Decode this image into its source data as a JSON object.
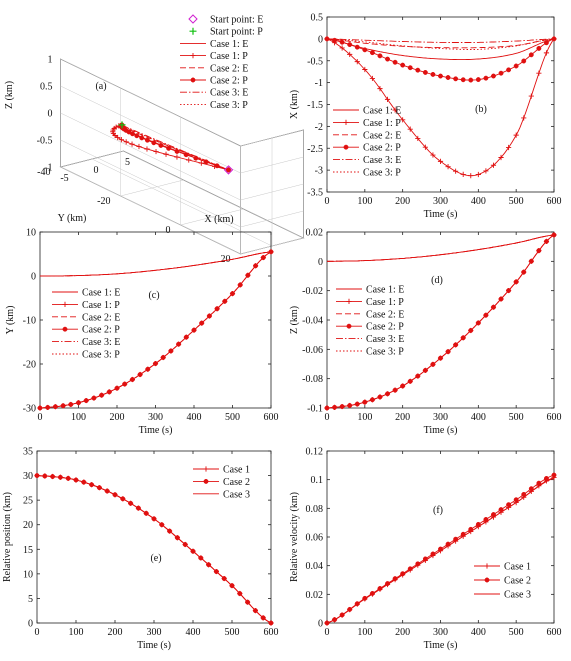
{
  "chart_data": [
    {
      "id": "a",
      "type": "line",
      "panel_label": "(a)",
      "projection": "3d",
      "xlabel": "X (km)",
      "ylabel": "Y (km)",
      "zlabel": "Z (km)",
      "xlim": [
        -5,
        5
      ],
      "ylim": [
        -40,
        20
      ],
      "zlim": [
        -1,
        1
      ],
      "x_ticks": [
        "-5",
        "0",
        "5"
      ],
      "y_ticks": [
        "-40",
        "-20",
        "0",
        "20"
      ],
      "z_ticks": [
        "-1",
        "-0.5",
        "0",
        "0.5",
        "1"
      ],
      "legend": [
        "Start point: E",
        "Start point: P",
        "Case 1: E",
        "Case 1: P",
        "Case 2: E",
        "Case 2: P",
        "Case 3: E",
        "Case 3: P"
      ],
      "start_point_E": {
        "x": 0,
        "y": 5.5,
        "z": 0.02
      },
      "start_point_P": {
        "x": 0,
        "y": -30,
        "z": -0.1
      }
    },
    {
      "id": "b",
      "type": "line",
      "panel_label": "(b)",
      "xlabel": "Time (s)",
      "ylabel": "X (km)",
      "xlim": [
        0,
        600
      ],
      "ylim": [
        -3.5,
        0.5
      ],
      "x_ticks": [
        "0",
        "100",
        "200",
        "300",
        "400",
        "500",
        "600"
      ],
      "y_ticks": [
        "-3.5",
        "-3",
        "-2.5",
        "-2",
        "-1.5",
        "-1",
        "-0.5",
        "0",
        "0.5"
      ],
      "legend_position": "bottom-left",
      "x": [
        0,
        100,
        200,
        300,
        400,
        500,
        600
      ],
      "series": [
        {
          "name": "Case 1: E",
          "style": "solid",
          "values": [
            0,
            -0.22,
            -0.38,
            -0.46,
            -0.46,
            -0.33,
            0
          ]
        },
        {
          "name": "Case 1: P",
          "style": "plus",
          "values": [
            0,
            -0.7,
            -1.85,
            -2.8,
            -3.1,
            -2.2,
            0
          ]
        },
        {
          "name": "Case 2: E",
          "style": "dashed",
          "values": [
            0,
            -0.1,
            -0.17,
            -0.2,
            -0.2,
            -0.15,
            0
          ]
        },
        {
          "name": "Case 2: P",
          "style": "dot-marker",
          "values": [
            0,
            -0.25,
            -0.6,
            -0.85,
            -0.93,
            -0.62,
            0
          ]
        },
        {
          "name": "Case 3: E",
          "style": "dashdot",
          "values": [
            0,
            -0.03,
            -0.06,
            -0.08,
            -0.08,
            -0.05,
            0
          ]
        },
        {
          "name": "Case 3: P",
          "style": "dotted",
          "values": [
            0,
            -0.07,
            -0.16,
            -0.22,
            -0.24,
            -0.16,
            0
          ]
        }
      ]
    },
    {
      "id": "c",
      "type": "line",
      "panel_label": "(c)",
      "xlabel": "Time (s)",
      "ylabel": "Y (km)",
      "xlim": [
        0,
        600
      ],
      "ylim": [
        -30,
        10
      ],
      "x_ticks": [
        "0",
        "100",
        "200",
        "300",
        "400",
        "500",
        "600"
      ],
      "y_ticks": [
        "-30",
        "-20",
        "-10",
        "0",
        "10"
      ],
      "legend_position": "middle-left",
      "x": [
        0,
        100,
        200,
        300,
        400,
        500,
        600
      ],
      "series": [
        {
          "name": "Case 1: E",
          "style": "solid",
          "values": [
            0,
            0.1,
            0.5,
            1.3,
            2.4,
            3.8,
            5.5
          ]
        },
        {
          "name": "Case 1: P",
          "style": "plus",
          "values": [
            -30,
            -28.8,
            -25.5,
            -19.9,
            -12.3,
            -4,
            5.5
          ]
        },
        {
          "name": "Case 2: E",
          "style": "dashed",
          "values": [
            0,
            0.1,
            0.5,
            1.3,
            2.4,
            3.8,
            5.5
          ]
        },
        {
          "name": "Case 2: P",
          "style": "dot-marker",
          "values": [
            -30,
            -28.8,
            -25.5,
            -19.9,
            -12.3,
            -4,
            5.5
          ]
        },
        {
          "name": "Case 3: E",
          "style": "dashdot",
          "values": [
            0,
            0.1,
            0.5,
            1.3,
            2.4,
            3.8,
            5.5
          ]
        },
        {
          "name": "Case 3: P",
          "style": "dotted",
          "values": [
            -30,
            -28.8,
            -25.5,
            -19.9,
            -12.3,
            -4,
            5.5
          ]
        }
      ]
    },
    {
      "id": "d",
      "type": "line",
      "panel_label": "(d)",
      "xlabel": "Time (s)",
      "ylabel": "Z (km)",
      "xlim": [
        0,
        600
      ],
      "ylim": [
        -0.1,
        0.02
      ],
      "x_ticks": [
        "0",
        "100",
        "200",
        "300",
        "400",
        "500",
        "600"
      ],
      "y_ticks": [
        "-0.1",
        "-0.08",
        "-0.06",
        "-0.04",
        "-0.02",
        "0",
        "0.02"
      ],
      "legend_position": "middle-right",
      "x": [
        0,
        100,
        200,
        300,
        400,
        500,
        600
      ],
      "series": [
        {
          "name": "Case 1: E",
          "style": "solid",
          "values": [
            0,
            0.0005,
            0.002,
            0.0045,
            0.008,
            0.0125,
            0.018
          ]
        },
        {
          "name": "Case 1: P",
          "style": "plus",
          "values": [
            -0.1,
            -0.096,
            -0.085,
            -0.066,
            -0.042,
            -0.014,
            0.018
          ]
        },
        {
          "name": "Case 2: E",
          "style": "dashed",
          "values": [
            0,
            0.0005,
            0.002,
            0.0045,
            0.008,
            0.0125,
            0.018
          ]
        },
        {
          "name": "Case 2: P",
          "style": "dot-marker",
          "values": [
            -0.1,
            -0.096,
            -0.085,
            -0.066,
            -0.042,
            -0.014,
            0.018
          ]
        },
        {
          "name": "Case 3: E",
          "style": "dashdot",
          "values": [
            0,
            0.0005,
            0.002,
            0.0045,
            0.008,
            0.0125,
            0.018
          ]
        },
        {
          "name": "Case 3: P",
          "style": "dotted",
          "values": [
            -0.1,
            -0.096,
            -0.085,
            -0.066,
            -0.042,
            -0.014,
            0.018
          ]
        }
      ]
    },
    {
      "id": "e",
      "type": "line",
      "panel_label": "(e)",
      "xlabel": "Time (s)",
      "ylabel": "Relative position (km)",
      "xlim": [
        0,
        600
      ],
      "ylim": [
        0,
        35
      ],
      "x_ticks": [
        "0",
        "100",
        "200",
        "300",
        "400",
        "500",
        "600"
      ],
      "y_ticks": [
        "0",
        "5",
        "10",
        "15",
        "20",
        "25",
        "30",
        "35"
      ],
      "legend_position": "top-right",
      "x": [
        0,
        100,
        200,
        300,
        400,
        500,
        600
      ],
      "series": [
        {
          "name": "Case 1",
          "style": "plus",
          "values": [
            30,
            29.1,
            26.1,
            21.2,
            14.6,
            7.6,
            0
          ]
        },
        {
          "name": "Case 2",
          "style": "dot-marker",
          "values": [
            30,
            29.1,
            26.1,
            21.2,
            14.6,
            7.6,
            0
          ]
        },
        {
          "name": "Case 3",
          "style": "solid",
          "values": [
            30,
            29.1,
            26.1,
            21.2,
            14.6,
            7.6,
            0
          ]
        }
      ]
    },
    {
      "id": "f",
      "type": "line",
      "panel_label": "(f)",
      "xlabel": "Time (s)",
      "ylabel": "Relative velocity (km)",
      "xlim": [
        0,
        600
      ],
      "ylim": [
        0,
        0.12
      ],
      "x_ticks": [
        "0",
        "100",
        "200",
        "300",
        "400",
        "500",
        "600"
      ],
      "y_ticks": [
        "0",
        "0.02",
        "0.04",
        "0.06",
        "0.08",
        "0.1",
        "0.12"
      ],
      "legend_position": "bottom-right",
      "x": [
        0,
        100,
        200,
        300,
        400,
        500,
        600
      ],
      "series": [
        {
          "name": "Case 1",
          "style": "plus",
          "values": [
            0,
            0.0168,
            0.0336,
            0.0504,
            0.0672,
            0.084,
            0.1015
          ]
        },
        {
          "name": "Case 2",
          "style": "dot-marker",
          "values": [
            0,
            0.0172,
            0.0344,
            0.0516,
            0.0688,
            0.086,
            0.1032
          ]
        },
        {
          "name": "Case 3",
          "style": "solid",
          "values": [
            0,
            0.0168,
            0.0336,
            0.0504,
            0.0672,
            0.084,
            0.101
          ]
        }
      ]
    }
  ]
}
